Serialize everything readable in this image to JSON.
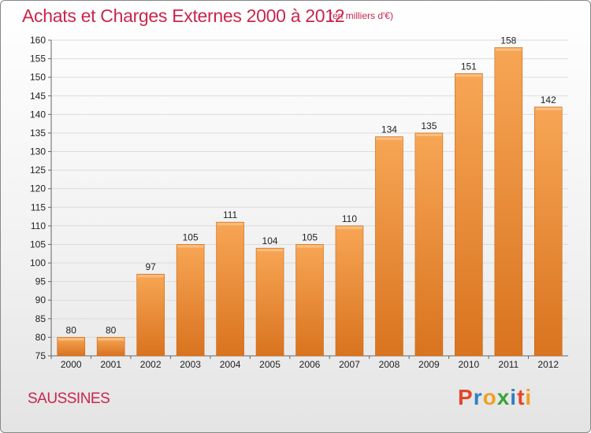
{
  "chart_data": {
    "type": "bar",
    "title": "Achats et Charges Externes 2000 à 2012",
    "subtitle": "(en milliers d'€)",
    "categories": [
      "2000",
      "2001",
      "2002",
      "2003",
      "2004",
      "2005",
      "2006",
      "2007",
      "2008",
      "2009",
      "2010",
      "2011",
      "2012"
    ],
    "values": [
      80,
      80,
      97,
      105,
      111,
      104,
      105,
      110,
      134,
      135,
      151,
      158,
      142
    ],
    "data_labels": [
      "80",
      "80",
      "97",
      "105",
      "111",
      "104",
      "105",
      "110",
      "134",
      "135",
      "151",
      "158",
      "142"
    ],
    "ylim": [
      75,
      160
    ],
    "yticks": [
      "75",
      "80",
      "85",
      "90",
      "95",
      "100",
      "105",
      "110",
      "115",
      "120",
      "125",
      "130",
      "135",
      "140",
      "145",
      "150",
      "155",
      "160"
    ],
    "xlabel": "",
    "ylabel": "",
    "grid": true,
    "bar_color_top": "#f7a655",
    "bar_color_bottom": "#d9731f"
  },
  "footer": {
    "city": "SAUSSINES"
  },
  "logo": {
    "text": "Proxiti",
    "letters": [
      "P",
      "r",
      "o",
      "x",
      "i",
      "t",
      "i"
    ],
    "colors": [
      "#e2462a",
      "#2f7fc4",
      "#f0a020",
      "#3aa33a",
      "#2f7fc4",
      "#e2462a",
      "#f0a020"
    ]
  },
  "title_color": "#c8264d"
}
